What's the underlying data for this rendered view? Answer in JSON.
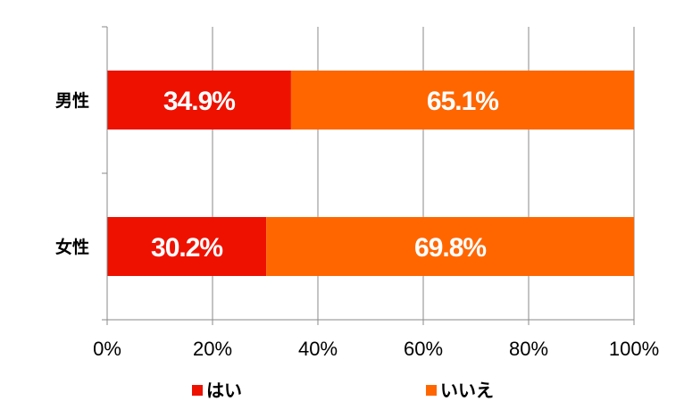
{
  "chart_data": {
    "type": "bar",
    "orientation": "horizontal",
    "stacked": true,
    "categories": [
      "男性",
      "女性"
    ],
    "series": [
      {
        "name": "はい",
        "values": [
          34.9,
          30.2
        ],
        "labels": [
          "34.9%",
          "30.2%"
        ],
        "color": "#ee1100"
      },
      {
        "name": "いいえ",
        "values": [
          65.1,
          69.8
        ],
        "labels": [
          "65.1%",
          "69.8%"
        ],
        "color": "#ff6600"
      }
    ],
    "xlim": [
      0,
      100
    ],
    "x_ticks": [
      "0%",
      "20%",
      "40%",
      "60%",
      "80%",
      "100%"
    ],
    "grid": true,
    "legend_position": "bottom"
  }
}
